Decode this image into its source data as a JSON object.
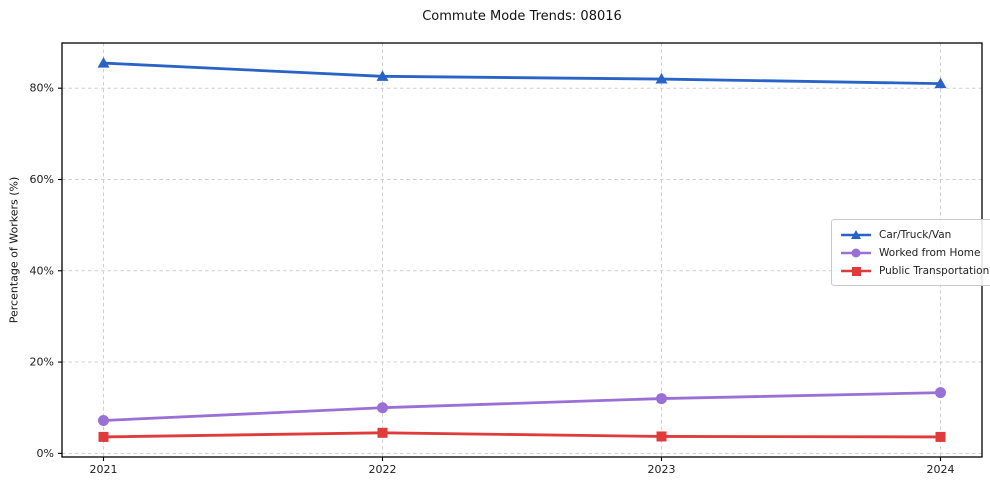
{
  "title": "Commute Mode Trends: 08016",
  "ylabel": "Percentage of Workers (%)",
  "colors": {
    "car_truck_van": "#2a63c6",
    "worked_from_home": "#9b70d6",
    "public_transportation": "#e03b3b",
    "grid": "#cfcfcf",
    "spine": "#000000",
    "tick_text": "#1c1c1c"
  },
  "chart_data": {
    "type": "line",
    "title": "Commute Mode Trends: 08016",
    "xlabel": "",
    "ylabel": "Percentage of Workers (%)",
    "categories": [
      "2021",
      "2022",
      "2023",
      "2024"
    ],
    "series": [
      {
        "name": "Car/Truck/Van",
        "values": [
          85.5,
          82.6,
          82.0,
          81.0
        ],
        "color": "#2a63c6",
        "marker": "triangle"
      },
      {
        "name": "Worked from Home",
        "values": [
          7.2,
          10.0,
          12.0,
          13.3
        ],
        "color": "#9b70d6",
        "marker": "circle"
      },
      {
        "name": "Public Transportation",
        "values": [
          3.6,
          4.5,
          3.7,
          3.6
        ],
        "color": "#e03b3b",
        "marker": "square"
      }
    ],
    "y_ticks": [
      {
        "value": 0,
        "label": "0%"
      },
      {
        "value": 20,
        "label": "20%"
      },
      {
        "value": 40,
        "label": "40%"
      },
      {
        "value": 60,
        "label": "60%"
      },
      {
        "value": 80,
        "label": "80%"
      }
    ],
    "ylim": [
      -0.8,
      89.9
    ],
    "grid": true,
    "grid_style": "dashed",
    "legend_position": "center right"
  }
}
